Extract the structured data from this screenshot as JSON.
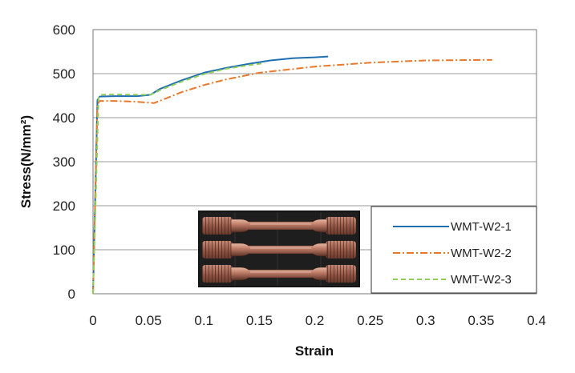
{
  "chart_data": {
    "type": "line",
    "title": "",
    "xlabel": "Strain",
    "ylabel": "Stress(N/mm²)",
    "xlim": [
      0,
      0.4
    ],
    "ylim": [
      0,
      600
    ],
    "xticks": [
      "0",
      "0.05",
      "0.1",
      "0.15",
      "0.2",
      "0.25",
      "0.3",
      "0.35",
      "0.4"
    ],
    "yticks": [
      "0",
      "100",
      "200",
      "300",
      "400",
      "500",
      "600"
    ],
    "grid": "horizontal",
    "legend_position": "bottom-right",
    "series": [
      {
        "name": "WMT-W2-1",
        "color": "#1f6fb0",
        "style": "solid",
        "x": [
          0,
          0.004,
          0.006,
          0.02,
          0.04,
          0.052,
          0.06,
          0.08,
          0.1,
          0.12,
          0.14,
          0.16,
          0.18,
          0.2,
          0.212
        ],
        "y": [
          0,
          440,
          448,
          449,
          449,
          452,
          465,
          485,
          502,
          513,
          522,
          530,
          535,
          537,
          539
        ]
      },
      {
        "name": "WMT-W2-2",
        "color": "#e9782a",
        "style": "dashdot",
        "x": [
          0,
          0.004,
          0.006,
          0.02,
          0.04,
          0.055,
          0.062,
          0.08,
          0.1,
          0.12,
          0.15,
          0.2,
          0.25,
          0.3,
          0.35,
          0.36
        ],
        "y": [
          0,
          430,
          438,
          438,
          436,
          433,
          440,
          458,
          474,
          487,
          502,
          516,
          525,
          530,
          531,
          531
        ]
      },
      {
        "name": "WMT-W2-3",
        "color": "#8fce57",
        "style": "dashed",
        "x": [
          0,
          0.005,
          0.007,
          0.02,
          0.04,
          0.052,
          0.06,
          0.08,
          0.1,
          0.12,
          0.14,
          0.155
        ],
        "y": [
          0,
          444,
          452,
          453,
          452,
          452,
          462,
          482,
          499,
          511,
          519,
          524
        ]
      }
    ]
  },
  "inset_photo": {
    "icon": "tensile-specimens-photo",
    "specimen_count": 3
  }
}
